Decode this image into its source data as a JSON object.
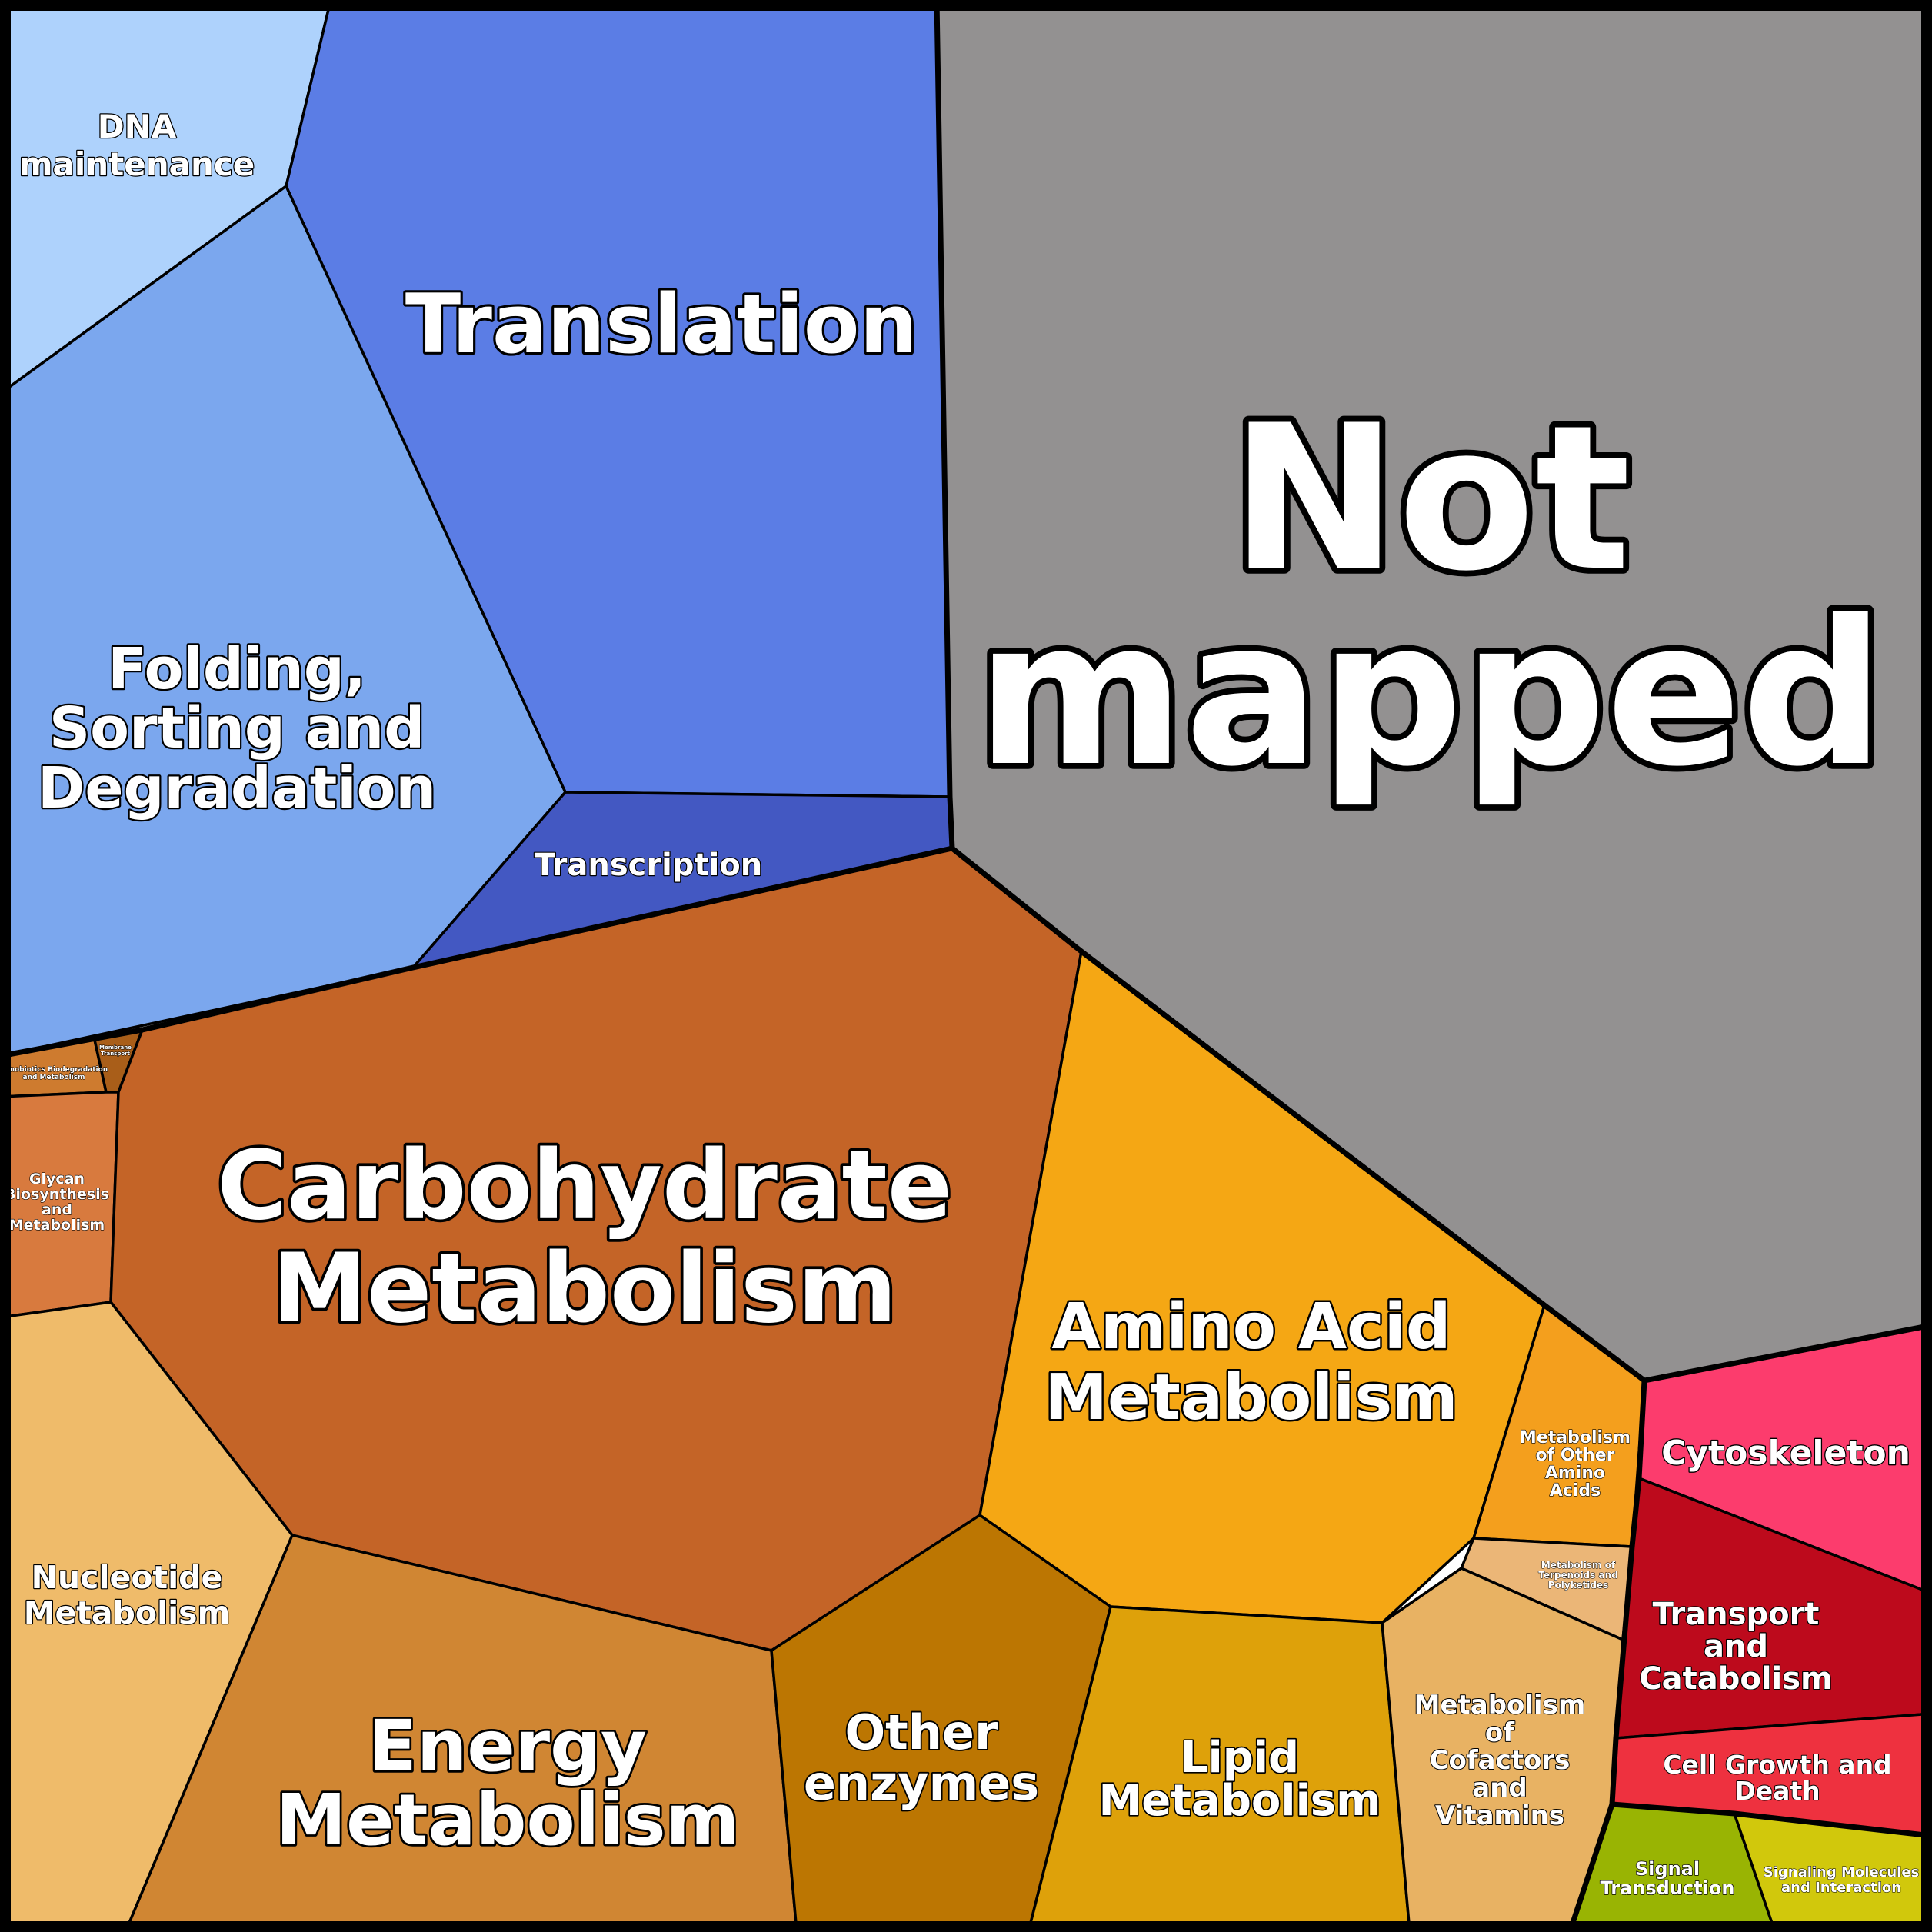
{
  "chart_data": {
    "type": "voronoi-treemap",
    "title": "",
    "groups": [
      {
        "group": "genetic-information-processing",
        "color": "#5B7DE5",
        "cells": [
          {
            "id": "dna-maintenance",
            "label": "DNA maintenance",
            "color": "#AED2FC"
          },
          {
            "id": "translation",
            "label": "Translation",
            "color": "#5B7DE5"
          },
          {
            "id": "folding",
            "label": "Folding, Sorting and Degradation",
            "color": "#7BA7EE"
          },
          {
            "id": "transcription",
            "label": "Transcription",
            "color": "#4358C2"
          }
        ]
      },
      {
        "group": "not-mapped",
        "color": "#939191",
        "cells": [
          {
            "id": "not-mapped",
            "label": "Not mapped",
            "color": "#939191"
          }
        ]
      },
      {
        "group": "metabolism",
        "color": "#C46427",
        "cells": [
          {
            "id": "xenobiotics",
            "label": "Xenobiotics Biodegradation and Metabolism",
            "color": "#CE7B2F"
          },
          {
            "id": "membrane-transport",
            "label": "Membrane Transport",
            "color": "#A95E19"
          },
          {
            "id": "glycan",
            "label": "Glycan Biosynthesis and Metabolism",
            "color": "#D87A3E"
          },
          {
            "id": "carbohydrate",
            "label": "Carbohydrate Metabolism",
            "color": "#C46427"
          },
          {
            "id": "amino-acid",
            "label": "Amino Acid Metabolism",
            "color": "#F5A714"
          },
          {
            "id": "other-amino-acids",
            "label": "Metabolism of Other Amino Acids",
            "color": "#F49F1D"
          },
          {
            "id": "terpenoids",
            "label": "Metabolism of Terpenoids and Polyketides",
            "color": "#EBB677"
          },
          {
            "id": "nucleotide",
            "label": "Nucleotide Metabolism",
            "color": "#EFBB6A"
          },
          {
            "id": "energy",
            "label": "Energy Metabolism",
            "color": "#D08633"
          },
          {
            "id": "other-enzymes",
            "label": "Other enzymes",
            "color": "#BC7602"
          },
          {
            "id": "lipid",
            "label": "Lipid Metabolism",
            "color": "#DEA10A"
          },
          {
            "id": "cofactors",
            "label": "Metabolism of Cofactors and Vitamins",
            "color": "#E8B263"
          }
        ]
      },
      {
        "group": "cellular-processes",
        "color": "#BD0A1C",
        "cells": [
          {
            "id": "cytoskeleton",
            "label": "Cytoskeleton",
            "color": "#FC3C6D"
          },
          {
            "id": "transport-catabolism",
            "label": "Transport and Catabolism",
            "color": "#BD0A1C"
          },
          {
            "id": "cell-growth",
            "label": "Cell Growth and Death",
            "color": "#EE313F"
          }
        ]
      },
      {
        "group": "environmental-information-processing",
        "color": "#99B403",
        "cells": [
          {
            "id": "signal-transduction",
            "label": "Signal Transduction",
            "color": "#99B403"
          },
          {
            "id": "signaling-molecules",
            "label": "Signaling Molecules and Interaction",
            "color": "#D1C80C"
          }
        ]
      }
    ]
  }
}
